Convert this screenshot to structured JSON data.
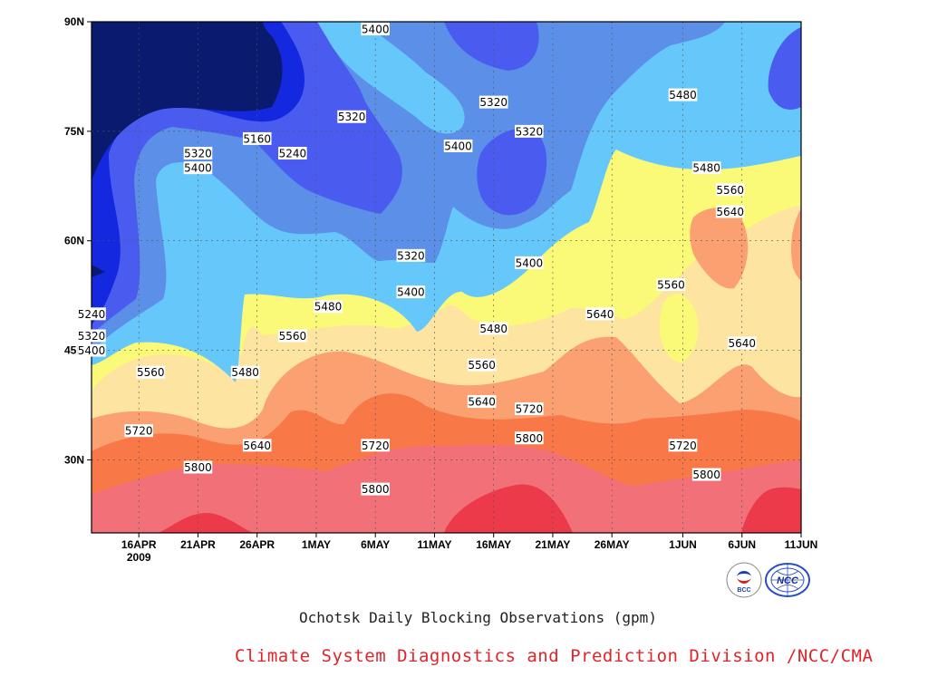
{
  "chart_data": {
    "type": "heatmap",
    "title": "Ochotsk Daily Blocking Observations (gpm)",
    "x_tick_labels": [
      "16APR",
      "21APR",
      "26APR",
      "1MAY",
      "6MAY",
      "11MAY",
      "16MAY",
      "21MAY",
      "26MAY",
      "1JUN",
      "6JUN",
      "11JUN"
    ],
    "x_year_label": "2009",
    "x_range": [
      "2009-04-12",
      "2009-06-11"
    ],
    "y_tick_labels": [
      "30N",
      "45N",
      "60N",
      "75N",
      "90N"
    ],
    "y_ticks": [
      30,
      45,
      60,
      75,
      90
    ],
    "y_range": [
      20,
      90
    ],
    "grid": true,
    "contour_levels": [
      5160,
      5240,
      5320,
      5400,
      5480,
      5560,
      5640,
      5720,
      5800
    ],
    "fill_colors": [
      "#0a1a6e",
      "#1428e0",
      "#4a5cf0",
      "#5b8fe8",
      "#66c8fa",
      "#fafa78",
      "#fde4a0",
      "#fba070",
      "#f87848",
      "#f27078",
      "#ec3a4a"
    ],
    "contour_labels": [
      {
        "text": "5400",
        "date": "2009-05-06",
        "lat": 89
      },
      {
        "text": "5160",
        "date": "2009-04-26",
        "lat": 74
      },
      {
        "text": "5320",
        "date": "2009-04-21",
        "lat": 72
      },
      {
        "text": "5240",
        "date": "2009-04-29",
        "lat": 72
      },
      {
        "text": "5400",
        "date": "2009-04-21",
        "lat": 70
      },
      {
        "text": "5320",
        "date": "2009-05-04",
        "lat": 77
      },
      {
        "text": "5400",
        "date": "2009-05-13",
        "lat": 73
      },
      {
        "text": "5320",
        "date": "2009-05-16",
        "lat": 79
      },
      {
        "text": "5320",
        "date": "2009-05-19",
        "lat": 75
      },
      {
        "text": "5480",
        "date": "2009-06-01",
        "lat": 80
      },
      {
        "text": "5480",
        "date": "2009-06-03",
        "lat": 70
      },
      {
        "text": "5560",
        "date": "2009-06-05",
        "lat": 67
      },
      {
        "text": "5640",
        "date": "2009-06-05",
        "lat": 64
      },
      {
        "text": "5320",
        "date": "2009-05-09",
        "lat": 58
      },
      {
        "text": "5400",
        "date": "2009-05-19",
        "lat": 57
      },
      {
        "text": "5400",
        "date": "2009-05-09",
        "lat": 53
      },
      {
        "text": "5480",
        "date": "2009-05-02",
        "lat": 51
      },
      {
        "text": "5560",
        "date": "2009-05-31",
        "lat": 54
      },
      {
        "text": "5640",
        "date": "2009-05-25",
        "lat": 50
      },
      {
        "text": "5240",
        "date": "2009-04-12",
        "lat": 50
      },
      {
        "text": "5320",
        "date": "2009-04-12",
        "lat": 47
      },
      {
        "text": "5400",
        "date": "2009-04-12",
        "lat": 45
      },
      {
        "text": "5560",
        "date": "2009-04-29",
        "lat": 47
      },
      {
        "text": "5480",
        "date": "2009-05-16",
        "lat": 48
      },
      {
        "text": "5640",
        "date": "2009-06-06",
        "lat": 46
      },
      {
        "text": "5560",
        "date": "2009-04-17",
        "lat": 42
      },
      {
        "text": "5480",
        "date": "2009-04-25",
        "lat": 42
      },
      {
        "text": "5560",
        "date": "2009-05-15",
        "lat": 43
      },
      {
        "text": "5640",
        "date": "2009-05-15",
        "lat": 38
      },
      {
        "text": "5720",
        "date": "2009-05-19",
        "lat": 37
      },
      {
        "text": "5720",
        "date": "2009-04-16",
        "lat": 34
      },
      {
        "text": "5640",
        "date": "2009-04-26",
        "lat": 32
      },
      {
        "text": "5720",
        "date": "2009-05-06",
        "lat": 32
      },
      {
        "text": "5800",
        "date": "2009-05-19",
        "lat": 33
      },
      {
        "text": "5720",
        "date": "2009-06-01",
        "lat": 32
      },
      {
        "text": "5800",
        "date": "2009-04-21",
        "lat": 29
      },
      {
        "text": "5800",
        "date": "2009-05-06",
        "lat": 26
      },
      {
        "text": "5800",
        "date": "2009-06-03",
        "lat": 28
      }
    ]
  },
  "caption": {
    "title": "Ochotsk Daily Blocking Observations (gpm)",
    "credit": "Climate System Diagnostics and Prediction Division /NCC/CMA"
  },
  "logos": [
    {
      "icon": "bcc-logo-icon",
      "text": "BCC"
    },
    {
      "icon": "ncc-logo-icon",
      "text": "NCC"
    }
  ]
}
